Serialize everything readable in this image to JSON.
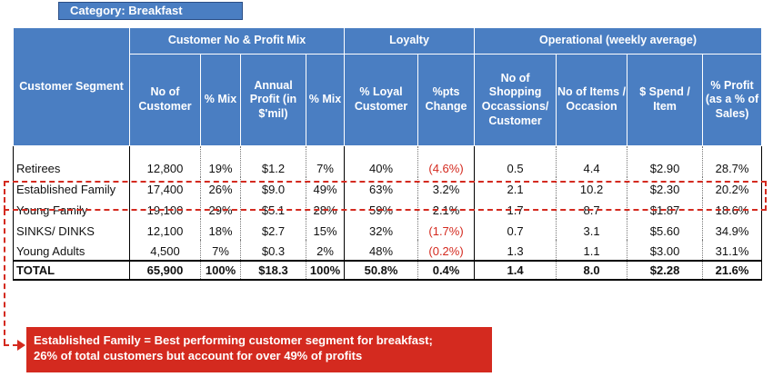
{
  "category_label": "Category: Breakfast",
  "groups": {
    "segment": "Customer Segment",
    "mix": "Customer No & Profit Mix",
    "loyalty": "Loyalty",
    "operational": "Operational (weekly average)"
  },
  "columns": [
    "No of Customer",
    "% Mix",
    "Annual Profit (in $'mil)",
    "% Mix",
    "% Loyal Customer",
    "%pts Change",
    "No of Shopping Occassions/ Customer",
    "No of Items / Occasion",
    "$ Spend / Item",
    "% Profit (as a % of Sales)"
  ],
  "rows": [
    {
      "segment": "Retirees",
      "cells": [
        "12,800",
        "19%",
        "$1.2",
        "7%",
        "40%",
        "(4.6%)",
        "0.5",
        "4.4",
        "$2.90",
        "28.7%"
      ]
    },
    {
      "segment": "Established Family",
      "cells": [
        "17,400",
        "26%",
        "$9.0",
        "49%",
        "63%",
        "3.2%",
        "2.1",
        "10.2",
        "$2.30",
        "20.2%"
      ]
    },
    {
      "segment": "Young Family",
      "cells": [
        "19,100",
        "29%",
        "$5.1",
        "28%",
        "59%",
        "2.1%",
        "1.7",
        "8.7",
        "$1.87",
        "18.6%"
      ]
    },
    {
      "segment": "SINKS/ DINKS",
      "cells": [
        "12,100",
        "18%",
        "$2.7",
        "15%",
        "32%",
        "(1.7%)",
        "0.7",
        "3.1",
        "$5.60",
        "34.9%"
      ]
    },
    {
      "segment": "Young Adults",
      "cells": [
        "4,500",
        "7%",
        "$0.3",
        "2%",
        "48%",
        "(0.2%)",
        "1.3",
        "1.1",
        "$3.00",
        "31.1%"
      ]
    }
  ],
  "total": {
    "segment": "TOTAL",
    "cells": [
      "65,900",
      "100%",
      "$18.3",
      "100%",
      "50.8%",
      "0.4%",
      "1.4",
      "8.0",
      "$2.28",
      "21.6%"
    ]
  },
  "colors": {
    "header_blue": "#4a7ec2",
    "negative_red": "#d42a1f",
    "callout_red": "#d42a1f"
  },
  "callout": {
    "line1": "Established Family = Best performing customer segment for breakfast;",
    "line2": "26% of total customers but account for over 49% of profits"
  }
}
